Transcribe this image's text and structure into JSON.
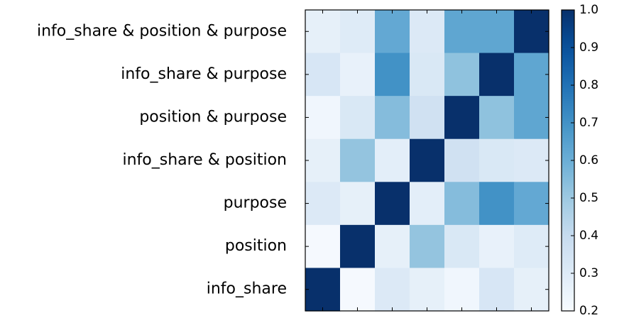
{
  "chart_data": {
    "type": "heatmap",
    "colormap": "Blues",
    "rows": [
      "info_share & position & purpose",
      "info_share & purpose",
      "position & purpose",
      "info_share & position",
      "purpose",
      "position",
      "info_share"
    ],
    "columns": [
      "info_share",
      "position",
      "purpose",
      "info_share & position",
      "position & purpose",
      "info_share & purpose",
      "info_share & position & purpose"
    ],
    "values": [
      [
        0.27,
        0.3,
        0.62,
        0.31,
        0.63,
        0.63,
        1.0
      ],
      [
        0.33,
        0.26,
        0.7,
        0.32,
        0.53,
        1.0,
        0.63
      ],
      [
        0.23,
        0.32,
        0.55,
        0.36,
        1.0,
        0.53,
        0.63
      ],
      [
        0.27,
        0.52,
        0.28,
        1.0,
        0.36,
        0.32,
        0.31
      ],
      [
        0.31,
        0.27,
        1.0,
        0.28,
        0.55,
        0.7,
        0.62
      ],
      [
        0.21,
        1.0,
        0.27,
        0.52,
        0.32,
        0.26,
        0.3
      ],
      [
        1.0,
        0.21,
        0.31,
        0.27,
        0.23,
        0.33,
        0.27
      ]
    ],
    "show_xticklabels": false,
    "colorbar": {
      "range": [
        0.2,
        1.0
      ],
      "ticks": [
        "0.2",
        "0.3",
        "0.4",
        "0.5",
        "0.6",
        "0.7",
        "0.8",
        "0.9",
        "1.0"
      ]
    }
  }
}
